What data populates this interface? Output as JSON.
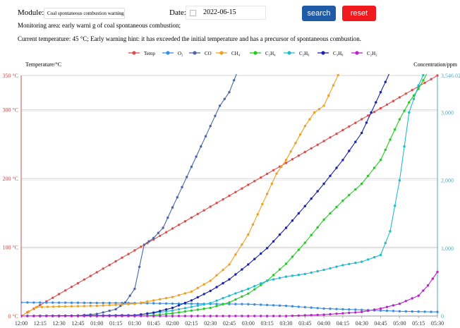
{
  "form": {
    "module_label": "Module:",
    "module_value": "Coal spontaneous combustion warning",
    "date_label": "Date:",
    "date_value": "2022-06-15",
    "search_label": "search",
    "reset_label": "reset"
  },
  "info": {
    "monitoring_area": "Monitoring area: early warni g of coal spontaneous combustion;",
    "current_temp": "Current temperature: 45 °C;  Early warning hint: it has exceeded the initial temperature and has a precursor of spontaneous combustion."
  },
  "colors": {
    "search_button": "#1f5ba6",
    "reset_button": "#f0191e",
    "left_axis": "#c0504d",
    "right_axis": "#4bacc6"
  },
  "chart_data": {
    "type": "line",
    "left_axis": {
      "label": "Temperature/°C",
      "ticks": [
        "0 °C",
        "100 °C",
        "200 °C",
        "300 °C",
        "350 °C"
      ],
      "tick_values": [
        0,
        100,
        200,
        300,
        350
      ],
      "ylim": [
        0,
        350
      ]
    },
    "right_axis": {
      "label": "Concentration/ppm",
      "ticks": [
        "0",
        "1,000",
        "2,000",
        "3,000",
        "3,546.02"
      ],
      "tick_values": [
        0,
        1000,
        2000,
        3000,
        3546.02
      ],
      "ylim": [
        0,
        3546.02
      ]
    },
    "x_ticks": [
      "12:00",
      "12:15",
      "12:30",
      "12:45",
      "01:00",
      "01:15",
      "01:30",
      "01:45",
      "02:00",
      "02:15",
      "02:30",
      "02:45",
      "03:00",
      "03:15",
      "03:30",
      "03:45",
      "04:00",
      "04:15",
      "04:30",
      "04:45",
      "05:00",
      "05:15",
      "05:30"
    ],
    "legend": [
      {
        "name": "Temp",
        "color": "#d94f4f"
      },
      {
        "name": "O₂",
        "color": "#3a8ee0"
      },
      {
        "name": "CO",
        "color": "#4a66a8"
      },
      {
        "name": "CH₄",
        "color": "#f0a020"
      },
      {
        "name": "C₂H₄",
        "color": "#22cc22"
      },
      {
        "name": "C₂H₆",
        "color": "#22bbcc"
      },
      {
        "name": "C₃H₈",
        "color": "#1a22aa"
      },
      {
        "name": "C₂H₂",
        "color": "#bb22cc"
      }
    ],
    "series": [
      {
        "name": "Temp",
        "axis": "left",
        "color": "#d94f4f",
        "points": [
          [
            0,
            0
          ],
          [
            22,
            350
          ]
        ]
      },
      {
        "name": "O₂",
        "axis": "right",
        "color": "#3a8ee0",
        "points": [
          [
            0,
            200
          ],
          [
            3,
            195
          ],
          [
            6,
            190
          ],
          [
            9,
            180
          ],
          [
            12,
            175
          ],
          [
            14,
            150
          ],
          [
            16,
            110
          ],
          [
            18,
            90
          ],
          [
            20,
            70
          ],
          [
            22,
            60
          ]
        ]
      },
      {
        "name": "CO",
        "axis": "right",
        "color": "#4a66a8",
        "points": [
          [
            0,
            0
          ],
          [
            2,
            0
          ],
          [
            3,
            5
          ],
          [
            4,
            30
          ],
          [
            5,
            100
          ],
          [
            5.5,
            200
          ],
          [
            6,
            400
          ],
          [
            6.5,
            1050
          ],
          [
            7,
            1150
          ],
          [
            7.5,
            1300
          ],
          [
            8,
            1600
          ],
          [
            8.5,
            1900
          ],
          [
            9,
            2200
          ],
          [
            9.5,
            2500
          ],
          [
            10,
            2800
          ],
          [
            10.5,
            3100
          ],
          [
            11,
            3300
          ],
          [
            11.5,
            3650
          ]
        ]
      },
      {
        "name": "CH₄",
        "axis": "right",
        "color": "#f0a020",
        "points": [
          [
            0,
            0
          ],
          [
            0.8,
            130
          ],
          [
            2,
            140
          ],
          [
            4,
            150
          ],
          [
            6,
            180
          ],
          [
            8,
            280
          ],
          [
            9,
            360
          ],
          [
            10,
            520
          ],
          [
            11,
            760
          ],
          [
            12,
            1200
          ],
          [
            12.5,
            1500
          ],
          [
            13,
            1800
          ],
          [
            13.5,
            2100
          ],
          [
            14,
            2300
          ],
          [
            14.5,
            2550
          ],
          [
            15,
            2800
          ],
          [
            15.5,
            3000
          ],
          [
            16,
            3100
          ],
          [
            16.5,
            3400
          ],
          [
            17,
            3700
          ]
        ]
      },
      {
        "name": "C₂H₄",
        "axis": "right",
        "color": "#22cc22",
        "points": [
          [
            0,
            0
          ],
          [
            6,
            0
          ],
          [
            7,
            10
          ],
          [
            8,
            40
          ],
          [
            9,
            80
          ],
          [
            10,
            120
          ],
          [
            11,
            200
          ],
          [
            12,
            330
          ],
          [
            13,
            520
          ],
          [
            14,
            770
          ],
          [
            15,
            1080
          ],
          [
            16,
            1420
          ],
          [
            17,
            1700
          ],
          [
            18,
            1950
          ],
          [
            19,
            2300
          ],
          [
            19.5,
            2600
          ],
          [
            20,
            2900
          ],
          [
            20.5,
            3150
          ],
          [
            21,
            3350
          ],
          [
            21.5,
            3600
          ]
        ]
      },
      {
        "name": "C₂H₆",
        "axis": "right",
        "color": "#22bbcc",
        "points": [
          [
            0,
            0
          ],
          [
            6,
            10
          ],
          [
            8,
            80
          ],
          [
            10,
            190
          ],
          [
            11,
            300
          ],
          [
            12,
            400
          ],
          [
            13,
            520
          ],
          [
            14,
            580
          ],
          [
            15,
            620
          ],
          [
            16,
            680
          ],
          [
            17,
            750
          ],
          [
            18,
            800
          ],
          [
            19,
            900
          ],
          [
            19.5,
            1250
          ],
          [
            20,
            2000
          ],
          [
            20.5,
            3000
          ],
          [
            21,
            3400
          ],
          [
            21.5,
            3700
          ]
        ]
      },
      {
        "name": "C₃H₈",
        "axis": "right",
        "color": "#1a22aa",
        "points": [
          [
            0,
            0
          ],
          [
            6,
            10
          ],
          [
            7,
            50
          ],
          [
            8,
            120
          ],
          [
            9,
            230
          ],
          [
            10,
            370
          ],
          [
            11,
            540
          ],
          [
            12,
            760
          ],
          [
            13,
            1000
          ],
          [
            14,
            1300
          ],
          [
            15,
            1620
          ],
          [
            16,
            1950
          ],
          [
            17,
            2300
          ],
          [
            18,
            2700
          ],
          [
            18.5,
            3000
          ],
          [
            19,
            3300
          ],
          [
            19.5,
            3600
          ]
        ]
      },
      {
        "name": "C₂H₂",
        "axis": "right",
        "color": "#bb22cc",
        "points": [
          [
            0,
            0
          ],
          [
            14,
            0
          ],
          [
            16,
            20
          ],
          [
            18,
            60
          ],
          [
            19,
            110
          ],
          [
            20,
            180
          ],
          [
            21,
            300
          ],
          [
            21.5,
            450
          ],
          [
            22,
            650
          ]
        ]
      }
    ]
  }
}
